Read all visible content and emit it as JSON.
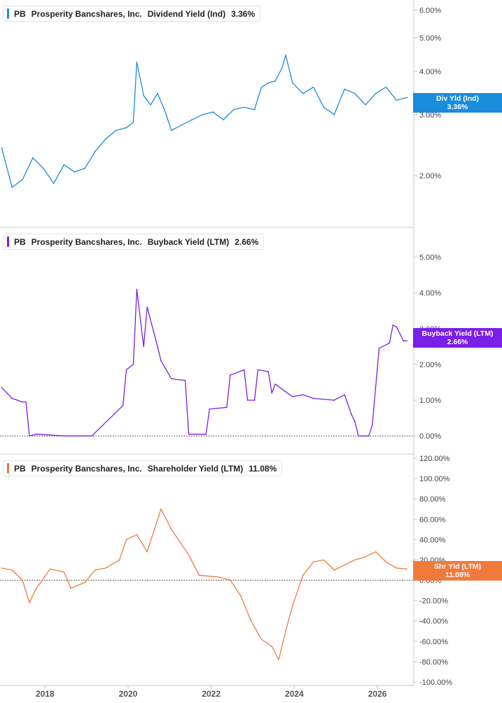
{
  "chart_data": [
    {
      "type": "line",
      "ticker": "PB",
      "company": "Prosperity Bancshares, Inc.",
      "metric": "Dividend Yield (Ind)",
      "latest_value": "3.36%",
      "tag_label": "Div Yld (Ind)",
      "color": "#1a8cdc",
      "y_scale": "log",
      "ylim": [
        1.55,
        6.3
      ],
      "yticks": [
        2,
        3,
        4,
        5,
        6
      ],
      "ytick_labels": [
        "2.00%",
        "3.00%",
        "4.00%",
        "5.00%",
        "6.00%"
      ],
      "x": [
        "2016-12",
        "2017-03",
        "2017-06",
        "2017-09",
        "2017-12",
        "2018-03",
        "2018-06",
        "2018-09",
        "2018-12",
        "2019-03",
        "2019-06",
        "2019-09",
        "2019-12",
        "2020-02",
        "2020-03",
        "2020-05",
        "2020-07",
        "2020-09",
        "2020-11",
        "2021-01",
        "2021-04",
        "2021-07",
        "2021-10",
        "2022-01",
        "2022-04",
        "2022-07",
        "2022-10",
        "2023-01",
        "2023-03",
        "2023-05",
        "2023-07",
        "2023-09",
        "2023-10",
        "2023-12",
        "2024-03",
        "2024-06",
        "2024-09",
        "2024-12",
        "2025-03",
        "2025-06",
        "2025-09",
        "2025-12",
        "2026-03",
        "2026-06",
        "2026-09"
      ],
      "values": [
        2.4,
        1.85,
        1.95,
        2.25,
        2.1,
        1.9,
        2.15,
        2.05,
        2.1,
        2.35,
        2.55,
        2.7,
        2.75,
        2.85,
        4.25,
        3.4,
        3.2,
        3.45,
        3.1,
        2.7,
        2.8,
        2.9,
        3.0,
        3.05,
        2.9,
        3.1,
        3.15,
        3.1,
        3.6,
        3.7,
        3.75,
        4.1,
        4.45,
        3.7,
        3.45,
        3.6,
        3.15,
        3.0,
        3.55,
        3.45,
        3.2,
        3.45,
        3.6,
        3.3,
        3.36
      ]
    },
    {
      "type": "line",
      "ticker": "PB",
      "company": "Prosperity Bancshares, Inc.",
      "metric": "Buyback Yield (LTM)",
      "latest_value": "2.66%",
      "tag_label": "Buyback Yield (LTM)",
      "color": "#7b1ee6",
      "ylim": [
        -0.25,
        5.5
      ],
      "yticks": [
        0,
        1,
        2,
        3,
        4,
        5
      ],
      "ytick_labels": [
        "0.00%",
        "1.00%",
        "2.00%",
        "3.00%",
        "4.00%",
        "5.00%"
      ],
      "x": [
        "2016-12",
        "2017-03",
        "2017-06",
        "2017-07",
        "2017-08",
        "2017-10",
        "2018-06",
        "2018-12",
        "2019-02",
        "2019-11",
        "2019-12",
        "2020-02",
        "2020-03",
        "2020-05",
        "2020-06",
        "2020-09",
        "2020-10",
        "2021-01",
        "2021-05",
        "2021-06",
        "2021-11",
        "2021-12",
        "2022-05",
        "2022-06",
        "2022-10",
        "2022-11",
        "2023-01",
        "2023-02",
        "2023-05",
        "2023-06",
        "2023-07",
        "2023-09",
        "2023-12",
        "2024-03",
        "2024-06",
        "2024-12",
        "2025-03",
        "2025-05",
        "2025-06",
        "2025-07",
        "2025-10",
        "2025-11",
        "2026-01",
        "2026-04",
        "2026-05",
        "2026-06",
        "2026-08",
        "2026-09"
      ],
      "values": [
        1.35,
        1.05,
        0.95,
        0.95,
        0.0,
        0.05,
        0.0,
        0.0,
        0.0,
        0.85,
        1.85,
        2.0,
        4.1,
        2.5,
        3.6,
        2.5,
        2.1,
        1.6,
        1.55,
        0.05,
        0.05,
        0.75,
        0.8,
        1.7,
        1.85,
        1.0,
        1.0,
        1.85,
        1.8,
        1.2,
        1.45,
        1.3,
        1.1,
        1.15,
        1.05,
        1.0,
        1.15,
        0.6,
        0.4,
        0.0,
        0.0,
        0.3,
        2.45,
        2.6,
        3.1,
        3.05,
        2.66,
        2.66
      ]
    },
    {
      "type": "line",
      "ticker": "PB",
      "company": "Prosperity Bancshares, Inc.",
      "metric": "Shareholder Yield (LTM)",
      "latest_value": "11.08%",
      "tag_label": "Shr Yld (LTM)",
      "color": "#f07a3c",
      "ylim": [
        -100,
        120
      ],
      "yticks": [
        -100,
        -80,
        -60,
        -40,
        -20,
        0,
        20,
        40,
        60,
        80,
        100,
        120
      ],
      "ytick_labels": [
        "-100.00%",
        "-80.00%",
        "-60.00%",
        "-40.00%",
        "-20.00%",
        "0.00%",
        "20.00%",
        "40.00%",
        "60.00%",
        "80.00%",
        "100.00%",
        "120.00%"
      ],
      "x": [
        "2016-12",
        "2017-03",
        "2017-06",
        "2017-08",
        "2017-10",
        "2018-02",
        "2018-06",
        "2018-08",
        "2018-12",
        "2019-03",
        "2019-06",
        "2019-10",
        "2019-12",
        "2020-03",
        "2020-06",
        "2020-10",
        "2021-01",
        "2021-06",
        "2021-09",
        "2022-03",
        "2022-06",
        "2022-09",
        "2022-12",
        "2023-03",
        "2023-06",
        "2023-08",
        "2023-10",
        "2023-12",
        "2024-03",
        "2024-06",
        "2024-09",
        "2024-12",
        "2025-03",
        "2025-06",
        "2025-09",
        "2025-12",
        "2026-03",
        "2026-06",
        "2026-09"
      ],
      "values": [
        12,
        10,
        0,
        -22,
        -8,
        11,
        8,
        -8,
        -2,
        10,
        12,
        20,
        40,
        45,
        28,
        70,
        50,
        25,
        5,
        3,
        0,
        -15,
        -40,
        -58,
        -65,
        -78,
        -50,
        -25,
        5,
        18,
        20,
        10,
        15,
        20,
        23,
        28,
        18,
        12,
        11.08
      ]
    }
  ],
  "x_axis": {
    "ticks": [
      "2018",
      "2020",
      "2022",
      "2024",
      "2026"
    ]
  }
}
